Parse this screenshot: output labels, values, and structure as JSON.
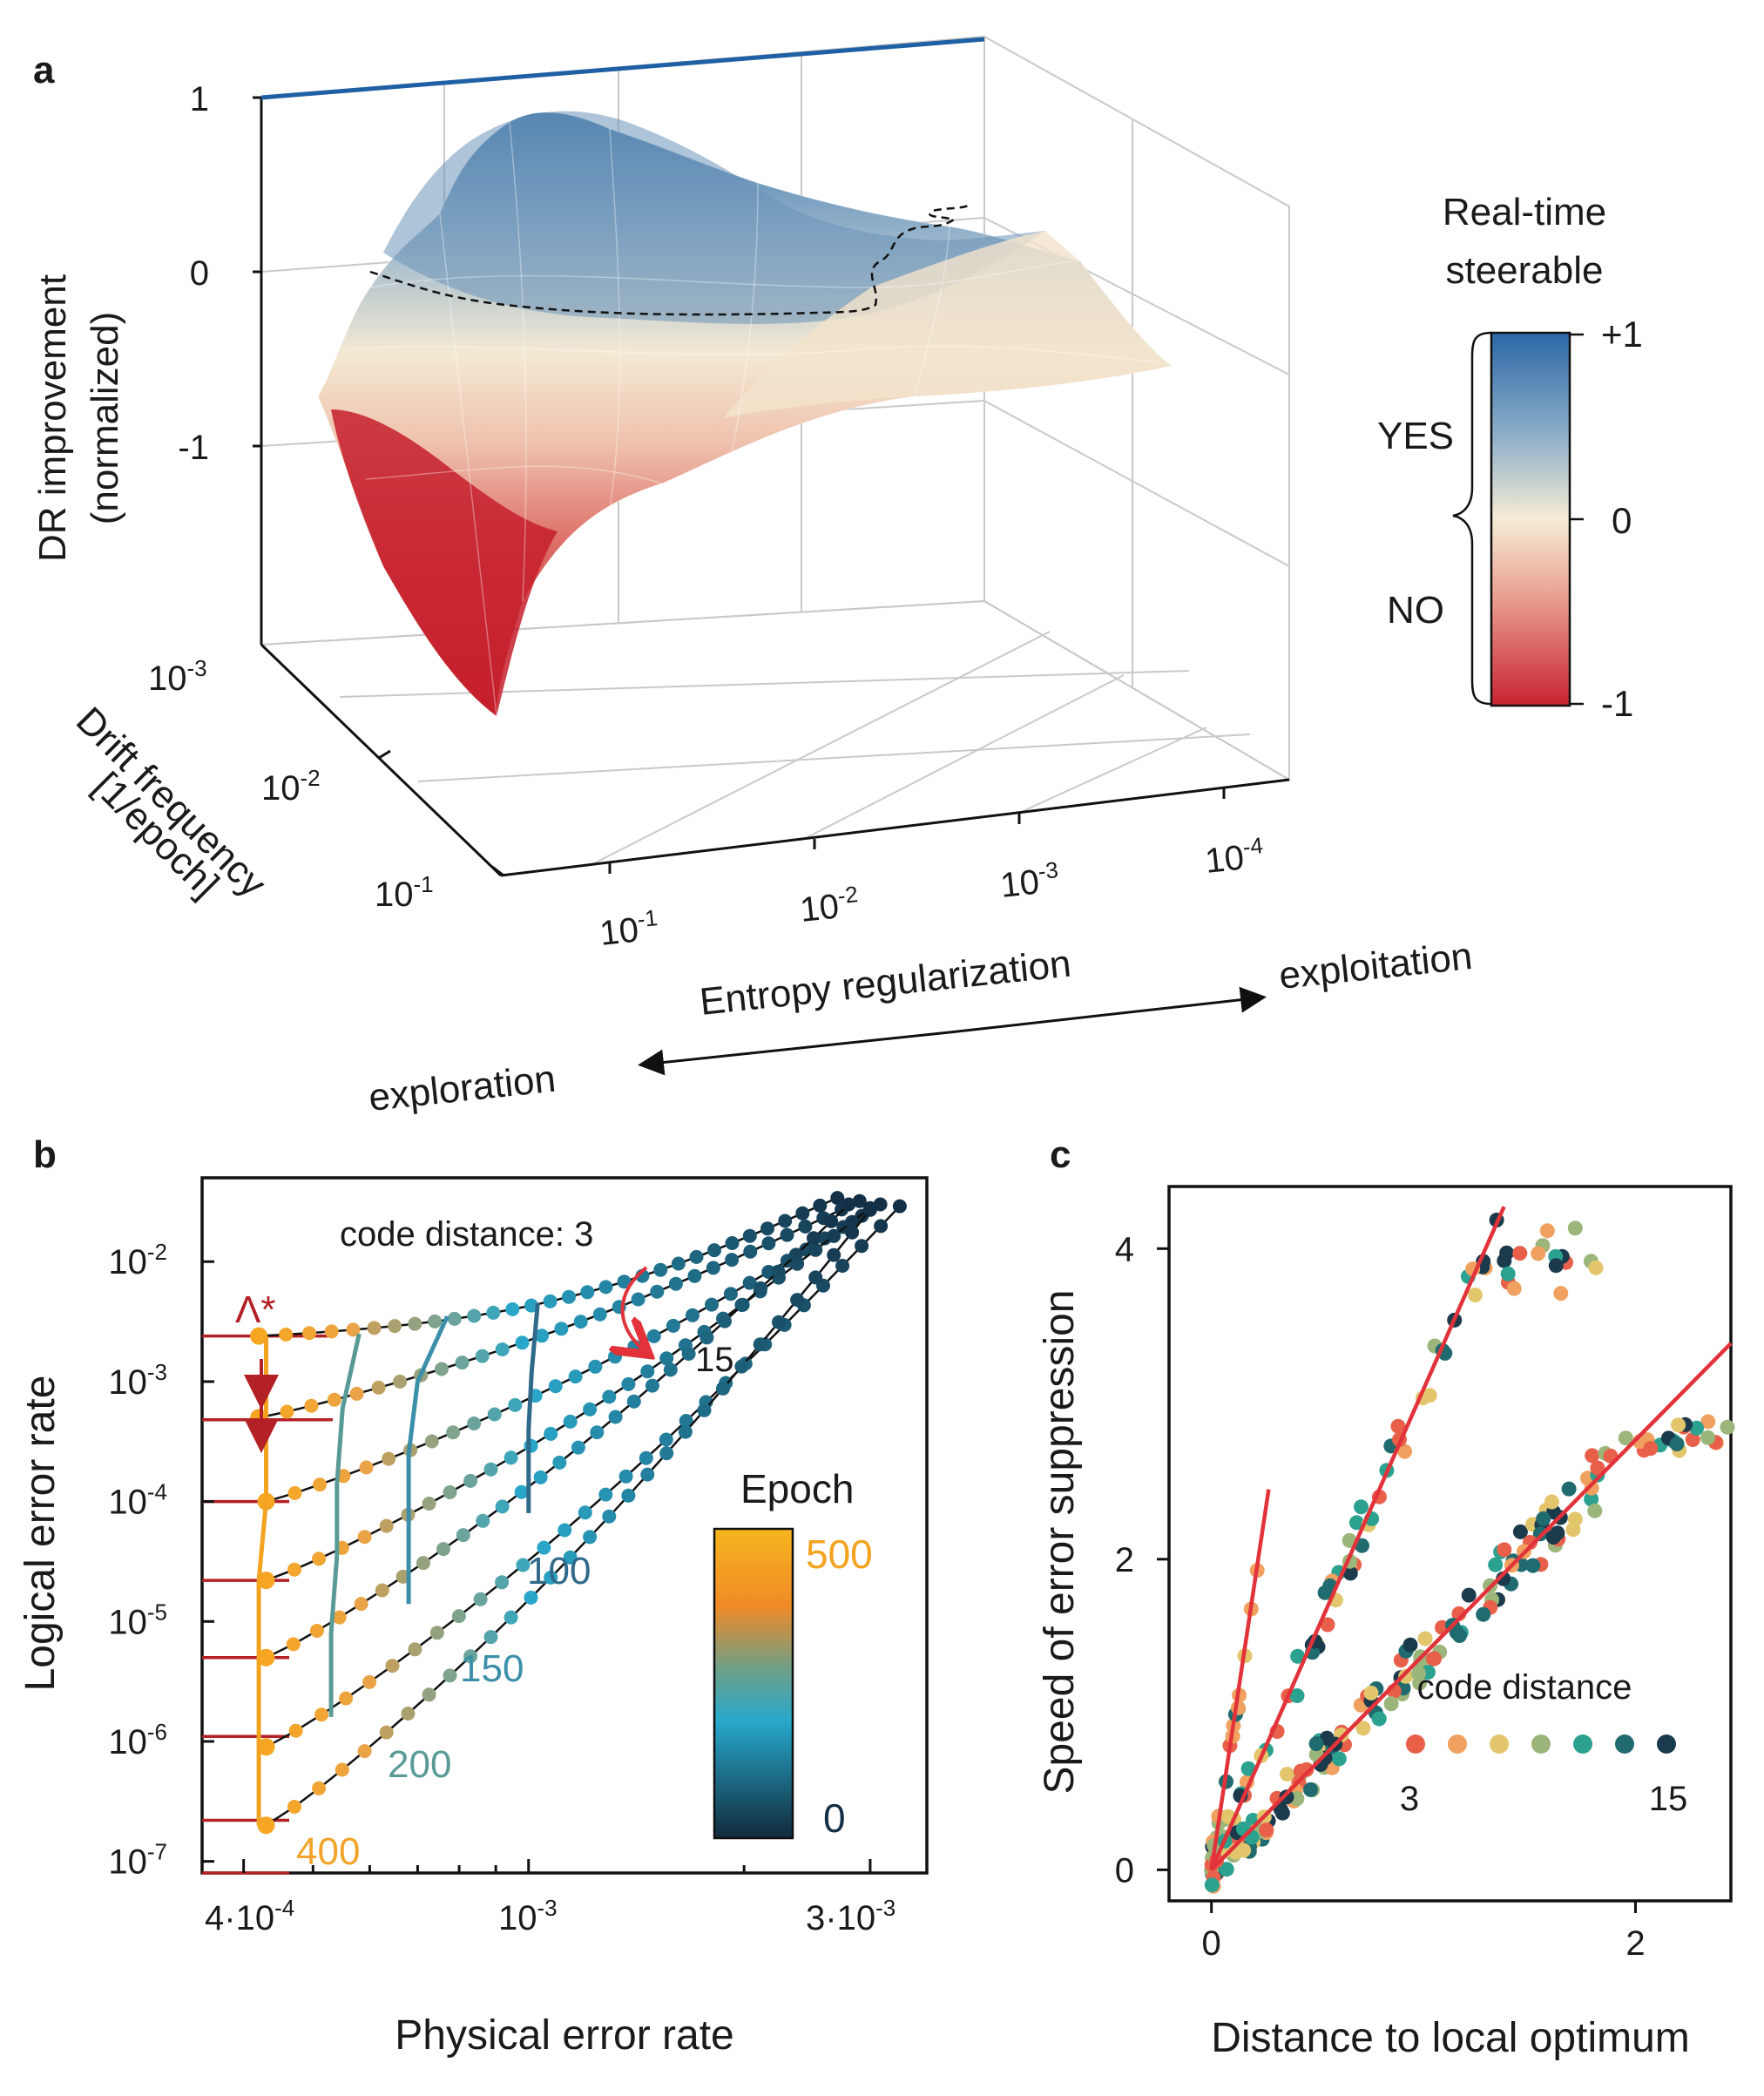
{
  "panels": {
    "a": "a",
    "b": "b",
    "c": "c"
  },
  "colors": {
    "steer_pos": "#2b67a6",
    "steer_mid": "#f6ecd5",
    "steer_neg": "#c8232f",
    "epoch_high": "#f6a623",
    "epoch_mid": "#2aa7c8",
    "epoch_low": "#143046",
    "fit_line": "#e2323a",
    "lambda_marker": "#b32025",
    "outlier_line": "#1f5fa3",
    "cd3": "#e8604a",
    "cd5": "#f0a15f",
    "cd7": "#e3c66c",
    "cd9": "#9bb57a",
    "cd11": "#2ba190",
    "cd13": "#1f6b6f",
    "cd15": "#1b3a4c"
  },
  "chart_data": [
    {
      "type": "surface",
      "panel": "a",
      "zlabel_line1": "DR improvement",
      "zlabel_line2": "(normalized)",
      "z_ticks": [
        "1",
        "0",
        "-1"
      ],
      "x_label": "Entropy regularization",
      "x_ticks": [
        "10-1",
        "10-2",
        "10-3",
        "10-4"
      ],
      "x_tick_base": "10",
      "x_tick_exp": [
        "-1",
        "-2",
        "-3",
        "-4"
      ],
      "y_label_line1": "Drift frequency",
      "y_label_line2": "[1/epoch]",
      "y_tick_base": "10",
      "y_tick_exp": [
        "-3",
        "-2",
        "-1"
      ],
      "direction_left": "exploration",
      "direction_right": "exploitation",
      "colorbar_title_line1": "Real-time",
      "colorbar_title_line2": "steerable",
      "colorbar_ticks": [
        "+1",
        "0",
        "-1"
      ],
      "colorbar_yes": "YES",
      "colorbar_no": "NO",
      "zlim": [
        -1.5,
        1
      ],
      "z_max_line": 1.0
    },
    {
      "type": "line",
      "panel": "b",
      "xlabel": "Physical error rate",
      "ylabel": "Logical error rate",
      "x_scale": "log",
      "y_scale": "log",
      "xlim": [
        0.00035,
        0.0036
      ],
      "ylim": [
        8e-08,
        0.05
      ],
      "x_ticks": [
        "4·10-4",
        "10-3",
        "3·10-3"
      ],
      "x_tick_parts": [
        [
          "4·10",
          "-4"
        ],
        [
          "10",
          "-3"
        ],
        [
          "3·10",
          "-3"
        ]
      ],
      "y_tick_exp": [
        "-2",
        "-3",
        "-4",
        "-5",
        "-6",
        "-7"
      ],
      "y_tick_base": "10",
      "annotation_code_distance": "code distance: 3",
      "annotation_15": "15",
      "lambda_label": "Λ*",
      "epoch_title": "Epoch",
      "epoch_high": "500",
      "epoch_low": "0",
      "epoch_labels": [
        "100",
        "150",
        "200",
        "400"
      ],
      "code_distances": [
        3,
        5,
        7,
        9,
        11,
        13,
        15
      ],
      "start_p": [
        0.00042,
        0.00042,
        0.00043,
        0.00043,
        0.00043,
        0.00043,
        0.00043
      ],
      "start_logical": [
        0.0024,
        0.0005,
        0.0001,
        2.2e-05,
        5e-06,
        9e-07,
        2e-07
      ],
      "end_p": [
        0.0027,
        0.0029,
        0.0031,
        0.003,
        0.0028,
        0.0033,
        0.003
      ],
      "end_logical": [
        0.034,
        0.032,
        0.03,
        0.028,
        0.03,
        0.029,
        0.027
      ],
      "epoch_ticks": [
        {
          "epoch": 400,
          "p": [
            0.00043,
            0.00043,
            0.00043,
            0.00042,
            0.00042,
            0.00042,
            0.00042
          ],
          "logical": [
            0.0024,
            0.0005,
            0.0001,
            2.2e-05,
            5e-06,
            9e-07,
            2e-07
          ]
        },
        {
          "epoch": 200,
          "p": [
            0.00058,
            0.00055,
            0.00054,
            0.00054,
            0.00053,
            0.00053
          ],
          "logical": [
            0.0025,
            0.0006,
            0.00014,
            3.5e-05,
            8e-06,
            1.6e-06
          ]
        },
        {
          "epoch": 150,
          "p": [
            0.00077,
            0.0007,
            0.00068,
            0.00068,
            0.00068
          ],
          "logical": [
            0.0035,
            0.001,
            0.00025,
            6.5e-05,
            1.4e-05
          ]
        },
        {
          "epoch": 100,
          "p": [
            0.00103,
            0.00101,
            0.001,
            0.001
          ],
          "logical": [
            0.0045,
            0.0012,
            0.0004,
            8e-05
          ]
        }
      ],
      "lambda_lines": [
        0.0024,
        0.00048,
        0.0001,
        2.2e-05,
        5e-06,
        1.1e-06,
        2.2e-07,
        8e-08
      ]
    },
    {
      "type": "scatter",
      "panel": "c",
      "xlabel": "Distance to local optimum",
      "ylabel": "Speed of error suppression",
      "xlim": [
        -0.2,
        2.45
      ],
      "ylim": [
        -0.2,
        4.4
      ],
      "x_ticks": [
        0,
        2
      ],
      "y_ticks": [
        0,
        2,
        4
      ],
      "legend_title": "code distance",
      "legend_low": "3",
      "legend_high": "15",
      "fit_lines": [
        {
          "x": [
            0.0,
            0.27
          ],
          "y": [
            0.0,
            2.45
          ]
        },
        {
          "x": [
            0.0,
            1.38
          ],
          "y": [
            0.0,
            4.27
          ]
        },
        {
          "x": [
            0.0,
            2.45
          ],
          "y": [
            0.0,
            3.39
          ]
        }
      ]
    }
  ]
}
